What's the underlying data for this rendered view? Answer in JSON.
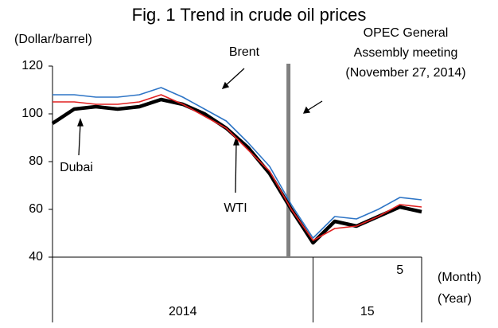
{
  "chart_data": {
    "type": "line",
    "title": "Fig. 1 Trend in crude oil prices",
    "ylabel": "(Dollar/barrel)",
    "xlabel_month": "(Month)",
    "xlabel_year": "(Year)",
    "x": [
      "2014-01",
      "2014-02",
      "2014-03",
      "2014-04",
      "2014-05",
      "2014-06",
      "2014-07",
      "2014-08",
      "2014-09",
      "2014-10",
      "2014-11",
      "2014-12",
      "2015-01",
      "2015-02",
      "2015-03",
      "2015-04",
      "2015-05",
      "2015-06"
    ],
    "series": [
      {
        "name": "Brent",
        "color": "#2e75c6",
        "values": [
          108,
          108,
          107,
          107,
          108,
          111,
          107,
          102,
          97,
          88,
          78,
          62,
          48,
          57,
          56,
          60,
          65,
          64
        ]
      },
      {
        "name": "WTI",
        "color": "#e02020",
        "values": [
          105,
          105,
          104,
          104,
          105,
          108,
          104,
          99,
          94,
          85,
          76,
          60,
          47,
          52,
          53,
          57,
          62,
          61
        ]
      },
      {
        "name": "Dubai",
        "color": "#000000",
        "values": [
          96,
          102,
          103,
          102,
          103,
          106,
          104,
          100,
          94,
          86,
          75,
          60,
          46,
          55,
          53,
          57,
          61,
          59
        ]
      }
    ],
    "xlim": [
      "2014-01",
      "2015-06"
    ],
    "ylim": [
      40,
      120
    ],
    "yticks": [
      40,
      60,
      80,
      100,
      120
    ],
    "xticks": [
      {
        "value": "2015-05",
        "label": "5"
      }
    ],
    "year_labels": [
      "2014",
      "15"
    ],
    "event": {
      "x": "2014-11-27",
      "color": "#808080",
      "label_lines": [
        "OPEC General",
        "Assembly meeting",
        "(November 27, 2014)"
      ]
    }
  }
}
